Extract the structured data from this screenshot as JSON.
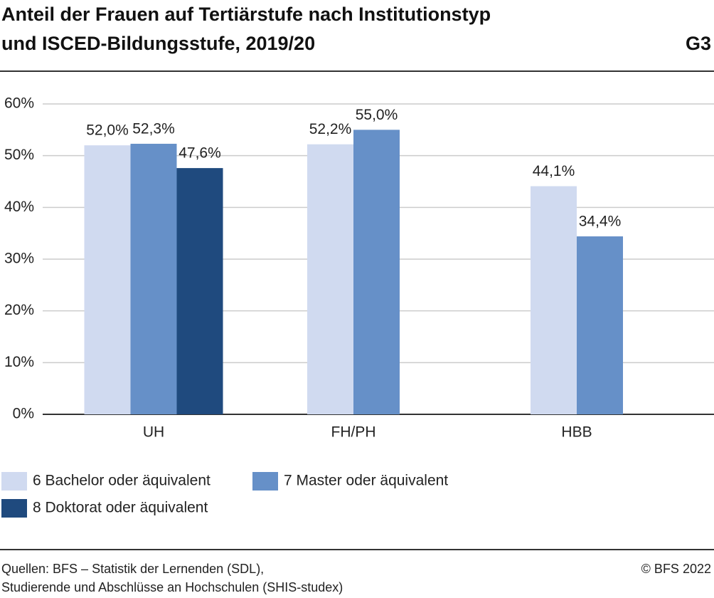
{
  "chart_data": {
    "type": "bar",
    "title": [
      "Anteil der Frauen auf Tertiärstufe nach Institutionstyp",
      "und ISCED-Bildungsstufe, 2019/20"
    ],
    "chart_id": "G3",
    "categories": [
      "UH",
      "FH/PH",
      "HBB"
    ],
    "series": [
      {
        "name": "6 Bachelor oder äquivalent",
        "color": "#d0daf0",
        "values": [
          52.0,
          52.2,
          44.1
        ],
        "value_labels": [
          "52,0%",
          "52,2%",
          "44,1%"
        ]
      },
      {
        "name": "7 Master oder äquivalent",
        "color": "#6690c8",
        "values": [
          52.3,
          55.0,
          34.4
        ],
        "value_labels": [
          "52,3%",
          "55,0%",
          "34,4%"
        ]
      },
      {
        "name": "8 Doktorat oder äquivalent",
        "color": "#1f4a7e",
        "values": [
          47.6,
          null,
          null
        ],
        "value_labels": [
          "47,6%",
          null,
          null
        ]
      }
    ],
    "ylim": [
      0,
      60
    ],
    "yticks": [
      {
        "value": 0,
        "label": "0%"
      },
      {
        "value": 10,
        "label": "10%"
      },
      {
        "value": 20,
        "label": "20%"
      },
      {
        "value": 30,
        "label": "30%"
      },
      {
        "value": 40,
        "label": "40%"
      },
      {
        "value": 50,
        "label": "50%"
      },
      {
        "value": 60,
        "label": "60%"
      }
    ],
    "grid": true,
    "source": [
      "Quellen: BFS – Statistik der Lernenden (SDL),",
      "Studierende und Abschlüsse an Hochschulen (SHIS-studex)"
    ],
    "copyright": "© BFS 2022"
  }
}
